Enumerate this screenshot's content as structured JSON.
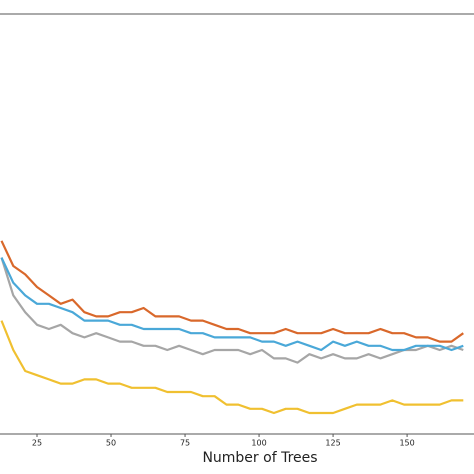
{
  "chart_data": {
    "type": "line",
    "xlabel": "Number of Trees",
    "x": [
      13,
      17,
      21,
      25,
      29,
      33,
      37,
      41,
      45,
      49,
      53,
      57,
      61,
      65,
      69,
      73,
      77,
      81,
      85,
      89,
      93,
      97,
      101,
      105,
      109,
      113,
      117,
      121,
      125,
      129,
      133,
      137,
      141,
      145,
      149,
      153,
      157,
      161,
      165,
      169
    ],
    "xlim": [
      12.5,
      172.6
    ],
    "xticks": [
      25,
      50,
      75,
      100,
      125,
      150
    ],
    "ylim": [
      0,
      1
    ],
    "series": [
      {
        "color": "#f0c030",
        "values": [
          0.27,
          0.2,
          0.15,
          0.14,
          0.13,
          0.12,
          0.12,
          0.13,
          0.13,
          0.12,
          0.12,
          0.11,
          0.11,
          0.11,
          0.1,
          0.1,
          0.1,
          0.09,
          0.09,
          0.07,
          0.07,
          0.06,
          0.06,
          0.05,
          0.06,
          0.06,
          0.05,
          0.05,
          0.05,
          0.06,
          0.07,
          0.07,
          0.07,
          0.08,
          0.07,
          0.07,
          0.07,
          0.07,
          0.08,
          0.08
        ]
      },
      {
        "color": "#a6a6a6",
        "values": [
          0.42,
          0.33,
          0.29,
          0.26,
          0.25,
          0.26,
          0.24,
          0.23,
          0.24,
          0.23,
          0.22,
          0.22,
          0.21,
          0.21,
          0.2,
          0.21,
          0.2,
          0.19,
          0.2,
          0.2,
          0.2,
          0.19,
          0.2,
          0.18,
          0.18,
          0.17,
          0.19,
          0.18,
          0.19,
          0.18,
          0.18,
          0.19,
          0.18,
          0.19,
          0.2,
          0.2,
          0.21,
          0.2,
          0.21,
          0.2
        ]
      },
      {
        "color": "#4aa8d8",
        "values": [
          0.42,
          0.36,
          0.33,
          0.31,
          0.31,
          0.3,
          0.29,
          0.27,
          0.27,
          0.27,
          0.26,
          0.26,
          0.25,
          0.25,
          0.25,
          0.25,
          0.24,
          0.24,
          0.23,
          0.23,
          0.23,
          0.23,
          0.22,
          0.22,
          0.21,
          0.22,
          0.21,
          0.2,
          0.22,
          0.21,
          0.22,
          0.21,
          0.21,
          0.2,
          0.2,
          0.21,
          0.21,
          0.21,
          0.2,
          0.21
        ]
      },
      {
        "color": "#d9682b",
        "values": [
          0.46,
          0.4,
          0.38,
          0.35,
          0.33,
          0.31,
          0.32,
          0.29,
          0.28,
          0.28,
          0.29,
          0.29,
          0.3,
          0.28,
          0.28,
          0.28,
          0.27,
          0.27,
          0.26,
          0.25,
          0.25,
          0.24,
          0.24,
          0.24,
          0.25,
          0.24,
          0.24,
          0.24,
          0.25,
          0.24,
          0.24,
          0.24,
          0.25,
          0.24,
          0.24,
          0.23,
          0.23,
          0.22,
          0.22,
          0.24
        ]
      }
    ]
  }
}
